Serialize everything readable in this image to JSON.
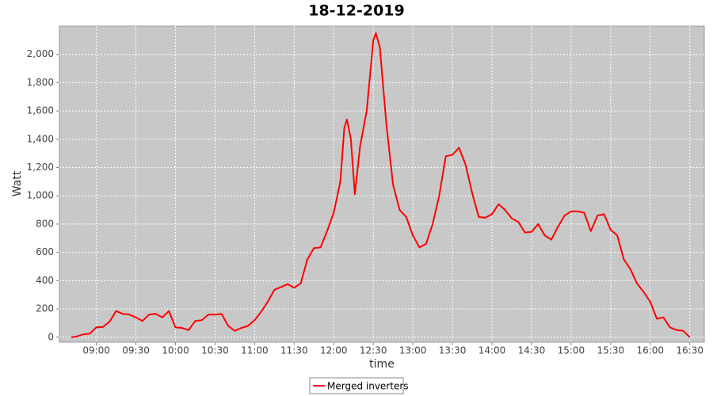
{
  "chart_data": {
    "type": "line",
    "title": "18-12-2019",
    "x_label": "time",
    "y_label": "Watt",
    "x": [
      "08:41",
      "08:45",
      "08:50",
      "08:55",
      "09:00",
      "09:05",
      "09:10",
      "09:15",
      "09:20",
      "09:25",
      "09:30",
      "09:35",
      "09:40",
      "09:45",
      "09:50",
      "09:55",
      "10:00",
      "10:05",
      "10:10",
      "10:15",
      "10:20",
      "10:25",
      "10:30",
      "10:35",
      "10:40",
      "10:45",
      "10:50",
      "10:55",
      "11:00",
      "11:05",
      "11:10",
      "11:15",
      "11:20",
      "11:25",
      "11:30",
      "11:35",
      "11:40",
      "11:45",
      "11:50",
      "11:55",
      "12:00",
      "12:05",
      "12:08",
      "12:10",
      "12:13",
      "12:16",
      "12:20",
      "12:25",
      "12:30",
      "12:32",
      "12:35",
      "12:40",
      "12:45",
      "12:50",
      "12:55",
      "13:00",
      "13:05",
      "13:10",
      "13:15",
      "13:20",
      "13:25",
      "13:30",
      "13:35",
      "13:40",
      "13:45",
      "13:50",
      "13:55",
      "14:00",
      "14:05",
      "14:10",
      "14:15",
      "14:20",
      "14:25",
      "14:30",
      "14:35",
      "14:40",
      "14:45",
      "14:50",
      "14:55",
      "15:00",
      "15:05",
      "15:10",
      "15:15",
      "15:20",
      "15:25",
      "15:30",
      "15:35",
      "15:40",
      "15:45",
      "15:50",
      "15:55",
      "16:00",
      "16:05",
      "16:10",
      "16:15",
      "16:20",
      "16:25",
      "16:30"
    ],
    "series": [
      {
        "name": "Merged inverters",
        "color": "#ff0000",
        "values": [
          0,
          5,
          20,
          25,
          70,
          72,
          110,
          185,
          165,
          160,
          140,
          115,
          160,
          165,
          140,
          185,
          70,
          65,
          50,
          115,
          120,
          160,
          160,
          165,
          80,
          45,
          65,
          80,
          120,
          180,
          250,
          335,
          355,
          375,
          350,
          380,
          550,
          630,
          635,
          750,
          880,
          1100,
          1480,
          1540,
          1400,
          1010,
          1350,
          1600,
          2100,
          2150,
          2050,
          1500,
          1080,
          900,
          850,
          720,
          635,
          660,
          800,
          1000,
          1280,
          1290,
          1340,
          1220,
          1020,
          850,
          845,
          870,
          940,
          900,
          840,
          815,
          740,
          745,
          800,
          720,
          690,
          780,
          860,
          890,
          890,
          880,
          750,
          860,
          870,
          760,
          720,
          550,
          480,
          380,
          320,
          250,
          130,
          140,
          70,
          50,
          45,
          0
        ]
      }
    ],
    "xlim": [
      "08:32",
      "16:41"
    ],
    "xticks": [
      "09:00",
      "09:30",
      "10:00",
      "10:30",
      "11:00",
      "11:30",
      "12:00",
      "12:30",
      "13:00",
      "13:30",
      "14:00",
      "14:30",
      "15:00",
      "15:30",
      "16:00",
      "16:30"
    ],
    "ylim": [
      -35,
      2200
    ],
    "yticks": [
      0,
      200,
      400,
      600,
      800,
      {
        "value": 1000,
        "label": "1,000"
      },
      {
        "value": 1200,
        "label": "1,200"
      },
      {
        "value": 1400,
        "label": "1,400"
      },
      {
        "value": 1600,
        "label": "1,600"
      },
      {
        "value": 1800,
        "label": "1,800"
      },
      {
        "value": 2000,
        "label": "2,000"
      }
    ],
    "grid": true,
    "legend": "bottom"
  }
}
